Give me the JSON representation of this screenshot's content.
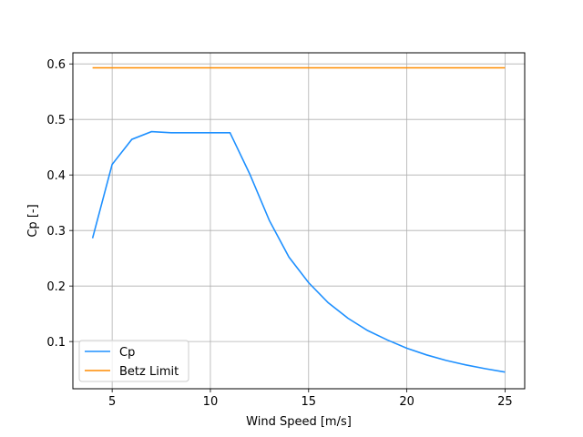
{
  "chart_data": {
    "type": "line",
    "xlabel": "Wind Speed [m/s]",
    "ylabel": "Cp [-]",
    "xlim": [
      3,
      26
    ],
    "ylim": [
      0.015,
      0.62
    ],
    "xticks": [
      5,
      10,
      15,
      20,
      25
    ],
    "xtick_labels": [
      "5",
      "10",
      "15",
      "20",
      "25"
    ],
    "yticks": [
      0.1,
      0.2,
      0.3,
      0.4,
      0.5,
      0.6
    ],
    "ytick_labels": [
      "0.1",
      "0.2",
      "0.3",
      "0.4",
      "0.5",
      "0.6"
    ],
    "grid": true,
    "legend_position": "lower-left",
    "series": [
      {
        "name": "Cp",
        "color": "#1e90ff",
        "x": [
          4,
          5,
          6,
          7,
          8,
          9,
          10,
          11,
          12,
          13,
          14,
          15,
          16,
          17,
          18,
          19,
          20,
          21,
          22,
          23,
          24,
          25
        ],
        "y": [
          0.286,
          0.419,
          0.464,
          0.478,
          0.476,
          0.476,
          0.476,
          0.476,
          0.402,
          0.318,
          0.252,
          0.206,
          0.17,
          0.142,
          0.12,
          0.103,
          0.088,
          0.076,
          0.066,
          0.058,
          0.051,
          0.045
        ]
      },
      {
        "name": "Betz Limit",
        "color": "#ff8c00",
        "x": [
          4,
          25
        ],
        "y": [
          0.593,
          0.593
        ]
      }
    ]
  }
}
